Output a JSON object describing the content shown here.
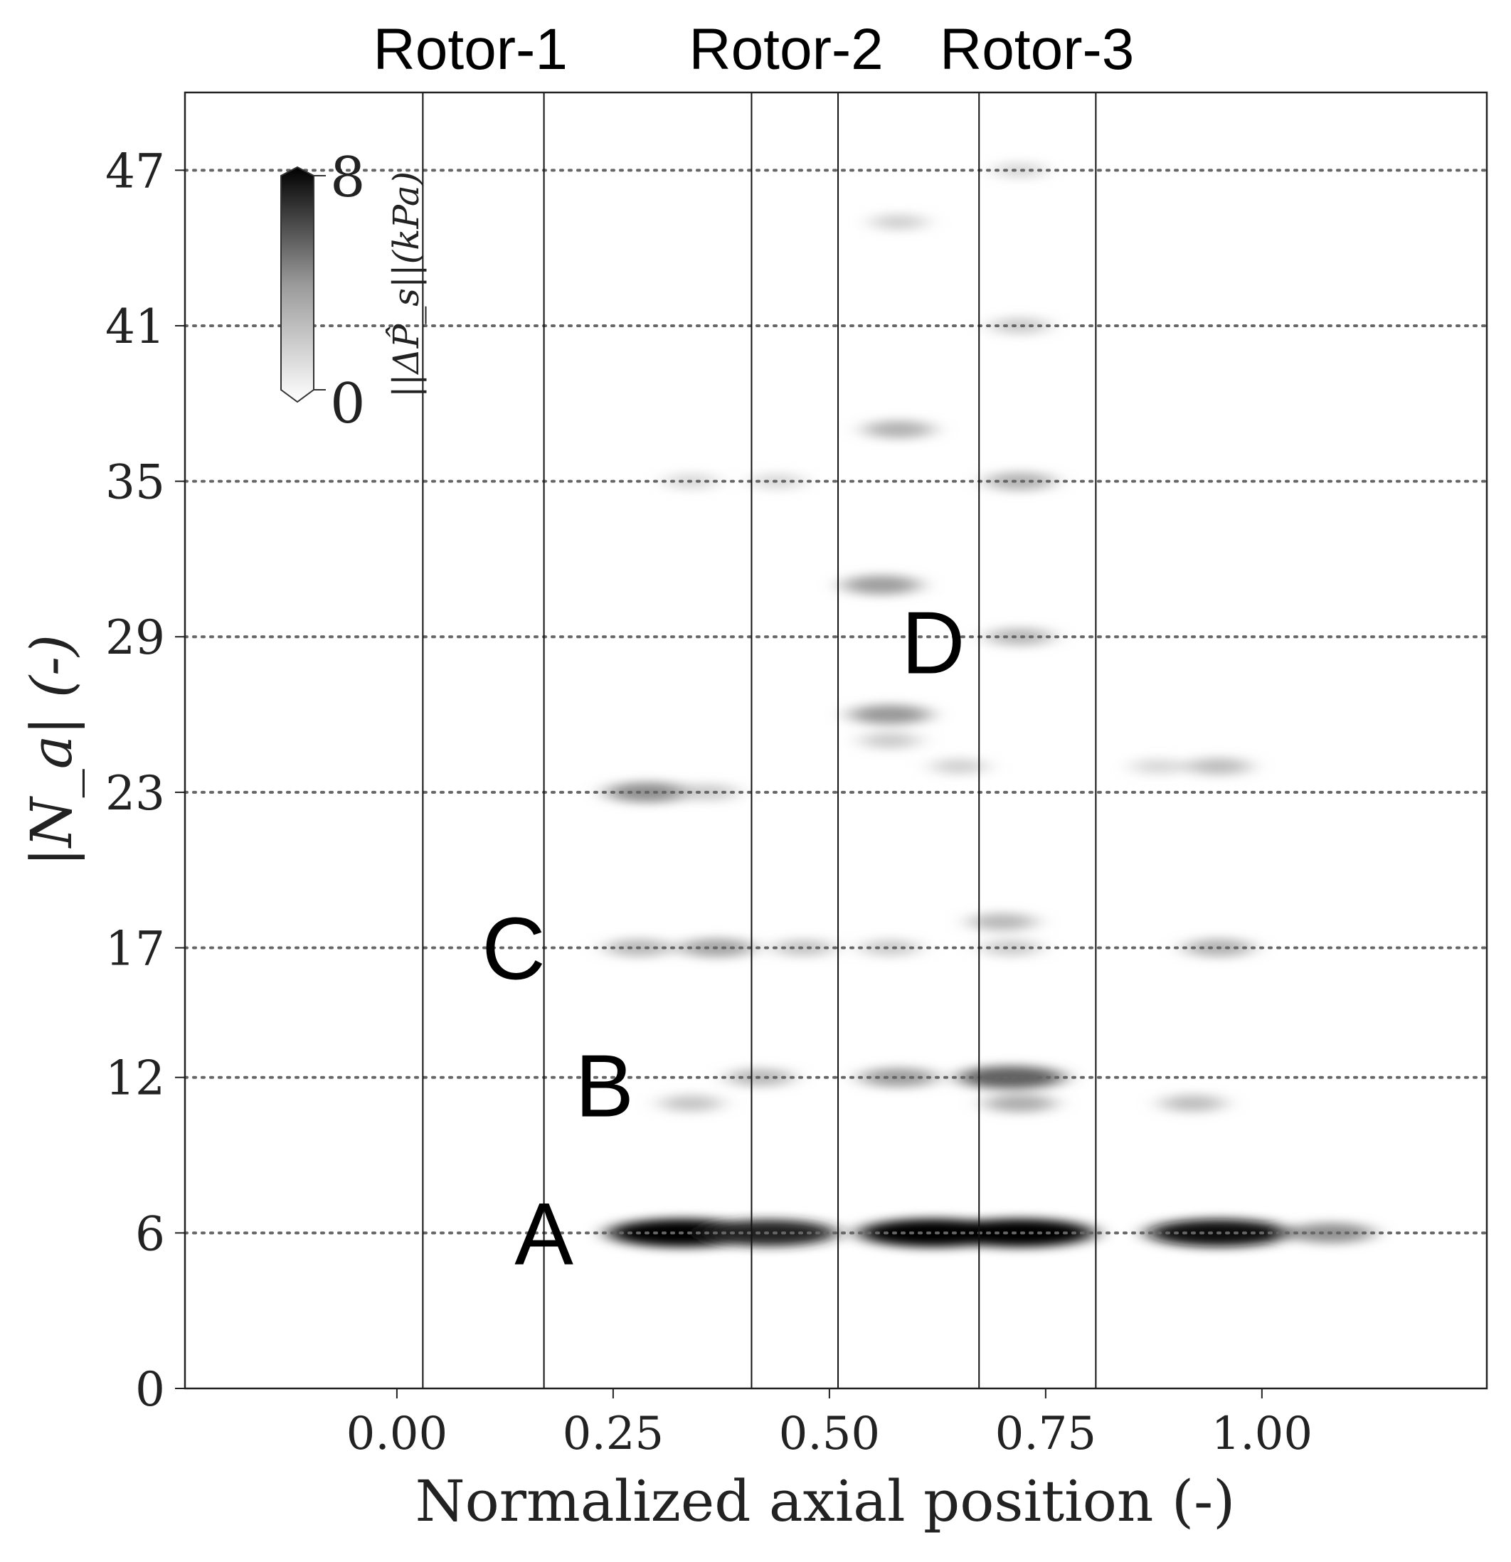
{
  "chart_data": {
    "type": "heatmap",
    "xlabel": "Normalized axial position  (-)",
    "ylabel": "|N_a|  (-)",
    "xlim": [
      -0.245,
      1.26
    ],
    "ylim": [
      0,
      50
    ],
    "x_ticks": [
      0.0,
      0.25,
      0.5,
      0.75,
      1.0
    ],
    "x_tick_labels": [
      "0.00",
      "0.25",
      "0.50",
      "0.75",
      "1.00"
    ],
    "y_ticks": [
      0,
      6,
      12,
      17,
      23,
      29,
      35,
      41,
      47
    ],
    "y_tick_labels": [
      "0",
      "6",
      "12",
      "17",
      "23",
      "29",
      "35",
      "41",
      "47"
    ],
    "y_grid_dotted": [
      6,
      12,
      17,
      23,
      29,
      35,
      41,
      47
    ],
    "rotor_boundaries": [
      0.03,
      0.17,
      0.41,
      0.51,
      0.673,
      0.808
    ],
    "rotor_labels": [
      {
        "text": "Rotor-1",
        "x": 0.085
      },
      {
        "text": "Rotor-2",
        "x": 0.45
      },
      {
        "text": "Rotor-3",
        "x": 0.74
      }
    ],
    "annotations": [
      {
        "text": "A",
        "x": 0.17,
        "y": 6
      },
      {
        "text": "B",
        "x": 0.24,
        "y": 11.7
      },
      {
        "text": "C",
        "x": 0.135,
        "y": 17
      },
      {
        "text": "D",
        "x": 0.62,
        "y": 28.8
      }
    ],
    "colorbar": {
      "min": 0,
      "max": 8,
      "min_label": "0",
      "max_label": "8",
      "label": "||ΔP̂_s||(kPa)",
      "colormap": "white-to-black",
      "placement": "top-left"
    },
    "series": [
      {
        "x": 0.33,
        "y": 6,
        "v": 8
      },
      {
        "x": 0.43,
        "y": 6,
        "v": 7
      },
      {
        "x": 0.62,
        "y": 6,
        "v": 8
      },
      {
        "x": 0.72,
        "y": 6,
        "v": 8
      },
      {
        "x": 0.95,
        "y": 6,
        "v": 7.5
      },
      {
        "x": 1.08,
        "y": 6,
        "v": 3.5
      },
      {
        "x": 0.34,
        "y": 11,
        "v": 1.8
      },
      {
        "x": 0.42,
        "y": 12,
        "v": 2.2
      },
      {
        "x": 0.58,
        "y": 12,
        "v": 3
      },
      {
        "x": 0.71,
        "y": 12,
        "v": 5
      },
      {
        "x": 0.72,
        "y": 11,
        "v": 2.5
      },
      {
        "x": 0.92,
        "y": 11,
        "v": 2
      },
      {
        "x": 0.28,
        "y": 17,
        "v": 2.2
      },
      {
        "x": 0.37,
        "y": 17,
        "v": 2.8
      },
      {
        "x": 0.47,
        "y": 17,
        "v": 1.8
      },
      {
        "x": 0.57,
        "y": 17,
        "v": 1.6
      },
      {
        "x": 0.7,
        "y": 18,
        "v": 2.2
      },
      {
        "x": 0.71,
        "y": 17,
        "v": 1.6
      },
      {
        "x": 0.95,
        "y": 17,
        "v": 2.4
      },
      {
        "x": 0.29,
        "y": 23,
        "v": 3.5
      },
      {
        "x": 0.36,
        "y": 23,
        "v": 1.6
      },
      {
        "x": 0.95,
        "y": 24,
        "v": 2
      },
      {
        "x": 0.88,
        "y": 24,
        "v": 1.2
      },
      {
        "x": 0.65,
        "y": 24,
        "v": 1.4
      },
      {
        "x": 0.57,
        "y": 26,
        "v": 3.2
      },
      {
        "x": 0.57,
        "y": 25,
        "v": 1.6
      },
      {
        "x": 0.72,
        "y": 29,
        "v": 2.2
      },
      {
        "x": 0.56,
        "y": 31,
        "v": 3
      },
      {
        "x": 0.72,
        "y": 35,
        "v": 2.4
      },
      {
        "x": 0.34,
        "y": 35,
        "v": 1.2
      },
      {
        "x": 0.44,
        "y": 35,
        "v": 1.2
      },
      {
        "x": 0.58,
        "y": 37,
        "v": 2.4
      },
      {
        "x": 0.72,
        "y": 41,
        "v": 1.6
      },
      {
        "x": 0.58,
        "y": 45,
        "v": 1.4
      },
      {
        "x": 0.72,
        "y": 47,
        "v": 1.2
      }
    ]
  }
}
